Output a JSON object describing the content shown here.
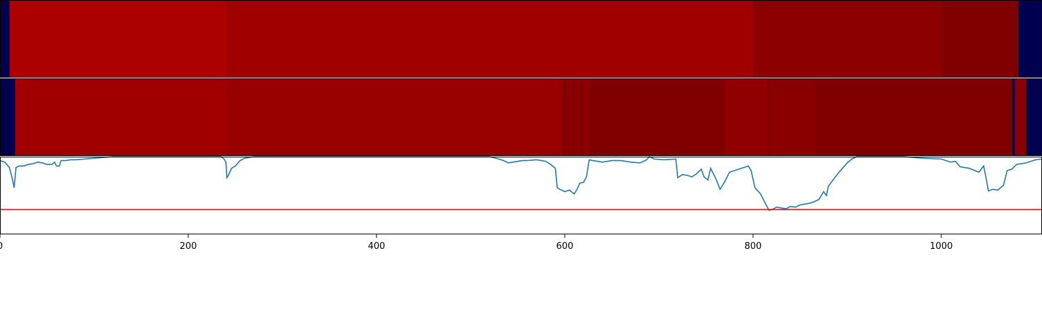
{
  "chart_data": [
    {
      "type": "heatmap",
      "panel": "top-band",
      "xlim": [
        0,
        1107
      ],
      "segments": [
        {
          "x0": 0,
          "x1": 10,
          "color": "#000050"
        },
        {
          "x0": 10,
          "x1": 240,
          "color": "#ad0000"
        },
        {
          "x0": 240,
          "x1": 800,
          "color": "#a00000"
        },
        {
          "x0": 800,
          "x1": 1001,
          "color": "#8c0000"
        },
        {
          "x0": 1001,
          "x1": 1082,
          "color": "#800000"
        },
        {
          "x0": 1082,
          "x1": 1107,
          "color": "#000050"
        }
      ]
    },
    {
      "type": "heatmap",
      "panel": "middle-band",
      "xlim": [
        0,
        1107
      ],
      "segments": [
        {
          "x0": 0,
          "x1": 16,
          "color": "#000050"
        },
        {
          "x0": 16,
          "x1": 240,
          "color": "#a00000"
        },
        {
          "x0": 240,
          "x1": 597,
          "color": "#980000"
        },
        {
          "x0": 597,
          "x1": 602,
          "color": "#800000"
        },
        {
          "x0": 602,
          "x1": 607,
          "color": "#8a0000"
        },
        {
          "x0": 607,
          "x1": 610,
          "color": "#800000"
        },
        {
          "x0": 610,
          "x1": 617,
          "color": "#8a0000"
        },
        {
          "x0": 617,
          "x1": 620,
          "color": "#800000"
        },
        {
          "x0": 620,
          "x1": 626,
          "color": "#8e0000"
        },
        {
          "x0": 626,
          "x1": 770,
          "color": "#800000"
        },
        {
          "x0": 770,
          "x1": 815,
          "color": "#900000"
        },
        {
          "x0": 815,
          "x1": 817,
          "color": "#800000"
        },
        {
          "x0": 817,
          "x1": 866,
          "color": "#8a0000"
        },
        {
          "x0": 866,
          "x1": 1075,
          "color": "#800000"
        },
        {
          "x0": 1075,
          "x1": 1078,
          "color": "#000050"
        },
        {
          "x0": 1078,
          "x1": 1090,
          "color": "#8a0000"
        },
        {
          "x0": 1090,
          "x1": 1107,
          "color": "#000050"
        }
      ]
    },
    {
      "type": "line",
      "panel": "bottom-line",
      "xlim": [
        0,
        1107
      ],
      "ylim": [
        0,
        1
      ],
      "xticks": [
        "0",
        "200",
        "400",
        "600",
        "800",
        "1000"
      ],
      "xtick_values": [
        0,
        200,
        400,
        600,
        800,
        1000
      ],
      "threshold": 0.32,
      "series": [
        {
          "color": "#1f77b4",
          "points": [
            [
              0,
              0.95
            ],
            [
              5,
              0.93
            ],
            [
              10,
              0.86
            ],
            [
              13,
              0.72
            ],
            [
              15,
              0.6
            ],
            [
              17,
              0.86
            ],
            [
              20,
              0.88
            ],
            [
              25,
              0.88
            ],
            [
              30,
              0.9
            ],
            [
              35,
              0.91
            ],
            [
              40,
              0.93
            ],
            [
              45,
              0.92
            ],
            [
              50,
              0.9
            ],
            [
              55,
              0.9
            ],
            [
              58,
              0.93
            ],
            [
              60,
              0.88
            ],
            [
              63,
              0.88
            ],
            [
              65,
              0.95
            ],
            [
              70,
              0.95
            ],
            [
              75,
              0.96
            ],
            [
              80,
              0.96
            ],
            [
              90,
              0.97
            ],
            [
              100,
              0.98
            ],
            [
              110,
              0.99
            ],
            [
              120,
              1.0
            ],
            [
              200,
              1.0
            ],
            [
              235,
              1.0
            ],
            [
              238,
              0.97
            ],
            [
              240,
              0.93
            ],
            [
              241,
              0.73
            ],
            [
              243,
              0.77
            ],
            [
              246,
              0.85
            ],
            [
              250,
              0.88
            ],
            [
              255,
              0.95
            ],
            [
              260,
              0.98
            ],
            [
              270,
              1.0
            ],
            [
              520,
              1.0
            ],
            [
              530,
              0.97
            ],
            [
              535,
              0.95
            ],
            [
              540,
              0.92
            ],
            [
              545,
              0.93
            ],
            [
              550,
              0.94
            ],
            [
              555,
              0.95
            ],
            [
              560,
              0.95
            ],
            [
              570,
              0.96
            ],
            [
              580,
              0.94
            ],
            [
              585,
              0.9
            ],
            [
              590,
              0.85
            ],
            [
              592,
              0.6
            ],
            [
              595,
              0.58
            ],
            [
              600,
              0.55
            ],
            [
              605,
              0.57
            ],
            [
              610,
              0.52
            ],
            [
              613,
              0.58
            ],
            [
              616,
              0.66
            ],
            [
              620,
              0.67
            ],
            [
              623,
              0.74
            ],
            [
              626,
              0.96
            ],
            [
              630,
              0.95
            ],
            [
              640,
              0.93
            ],
            [
              650,
              0.95
            ],
            [
              660,
              0.95
            ],
            [
              670,
              0.93
            ],
            [
              680,
              0.92
            ],
            [
              687,
              0.96
            ],
            [
              690,
              1.0
            ],
            [
              695,
              0.97
            ],
            [
              705,
              0.96
            ],
            [
              718,
              0.97
            ],
            [
              720,
              0.73
            ],
            [
              725,
              0.77
            ],
            [
              730,
              0.76
            ],
            [
              735,
              0.74
            ],
            [
              740,
              0.78
            ],
            [
              745,
              0.84
            ],
            [
              748,
              0.74
            ],
            [
              752,
              0.7
            ],
            [
              755,
              0.85
            ],
            [
              760,
              0.73
            ],
            [
              765,
              0.58
            ],
            [
              770,
              0.68
            ],
            [
              775,
              0.8
            ],
            [
              780,
              0.82
            ],
            [
              785,
              0.84
            ],
            [
              795,
              0.88
            ],
            [
              798,
              0.82
            ],
            [
              802,
              0.6
            ],
            [
              808,
              0.52
            ],
            [
              813,
              0.4
            ],
            [
              817,
              0.31
            ],
            [
              820,
              0.32
            ],
            [
              825,
              0.35
            ],
            [
              830,
              0.34
            ],
            [
              835,
              0.33
            ],
            [
              840,
              0.36
            ],
            [
              845,
              0.35
            ],
            [
              850,
              0.38
            ],
            [
              855,
              0.39
            ],
            [
              860,
              0.4
            ],
            [
              865,
              0.42
            ],
            [
              870,
              0.45
            ],
            [
              875,
              0.55
            ],
            [
              878,
              0.5
            ],
            [
              880,
              0.62
            ],
            [
              885,
              0.7
            ],
            [
              890,
              0.78
            ],
            [
              895,
              0.85
            ],
            [
              900,
              0.92
            ],
            [
              905,
              0.97
            ],
            [
              910,
              1.0
            ],
            [
              960,
              1.0
            ],
            [
              980,
              0.98
            ],
            [
              1000,
              0.97
            ],
            [
              1010,
              0.93
            ],
            [
              1015,
              0.94
            ],
            [
              1020,
              0.87
            ],
            [
              1030,
              0.85
            ],
            [
              1040,
              0.8
            ],
            [
              1045,
              0.88
            ],
            [
              1048,
              0.7
            ],
            [
              1050,
              0.56
            ],
            [
              1055,
              0.58
            ],
            [
              1060,
              0.57
            ],
            [
              1066,
              0.63
            ],
            [
              1070,
              0.82
            ],
            [
              1075,
              0.84
            ],
            [
              1080,
              0.9
            ],
            [
              1090,
              0.92
            ],
            [
              1100,
              0.96
            ],
            [
              1107,
              0.97
            ]
          ]
        }
      ]
    }
  ]
}
